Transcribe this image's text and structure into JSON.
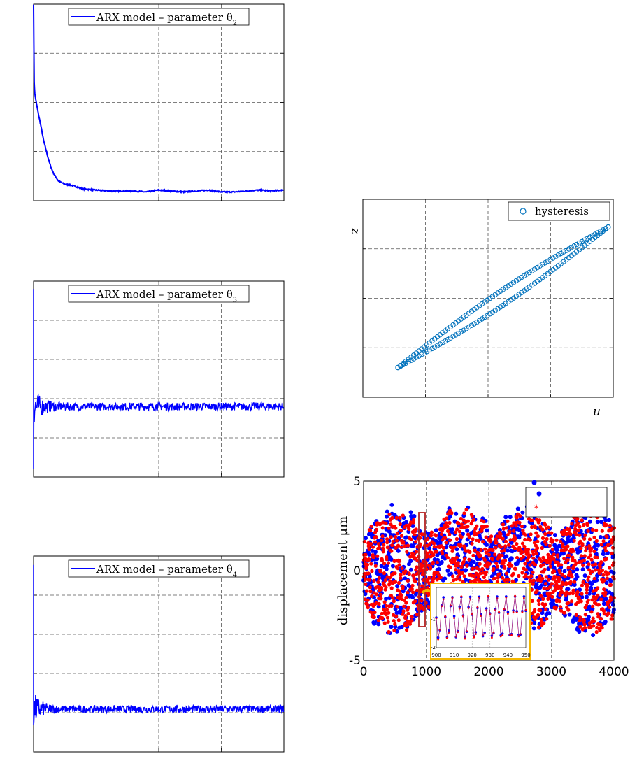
{
  "chart_data": [
    {
      "type": "line",
      "legend": {
        "entry": "ARX model – parameter θ",
        "subscript": "2",
        "color": "#0000ff",
        "placement": "top-center"
      },
      "grid": true,
      "x": [
        0,
        0.5,
        1,
        2,
        4,
        6,
        8,
        10,
        12,
        14,
        16,
        18,
        20,
        25,
        30,
        40,
        50,
        60,
        70,
        80,
        90,
        100,
        110,
        120,
        130,
        140,
        150,
        160,
        170,
        180,
        190,
        200
      ],
      "values": [
        1.0,
        0.6,
        0.54,
        0.5,
        0.43,
        0.37,
        0.3,
        0.25,
        0.2,
        0.16,
        0.13,
        0.11,
        0.09,
        0.075,
        0.07,
        0.05,
        0.045,
        0.04,
        0.04,
        0.04,
        0.035,
        0.045,
        0.04,
        0.035,
        0.04,
        0.045,
        0.035,
        0.035,
        0.04,
        0.045,
        0.04,
        0.045
      ],
      "xlim": [
        0,
        200
      ],
      "ylim": [
        -0.01,
        1.0
      ]
    },
    {
      "type": "line",
      "legend": {
        "entry": "ARX model – parameter θ",
        "subscript": "3",
        "color": "#0000ff",
        "placement": "top-center"
      },
      "grid": true,
      "spike": {
        "max": 0.95,
        "min": -0.2
      },
      "baseline": 0.2,
      "noise": 0.025,
      "xlim": [
        0,
        200
      ],
      "ylim": [
        -0.25,
        1.0
      ]
    },
    {
      "type": "line",
      "legend": {
        "entry": "ARX model – parameter θ",
        "subscript": "4",
        "color": "#0000ff",
        "placement": "top-center"
      },
      "grid": true,
      "spike": {
        "max": 0.95,
        "min": 0.05
      },
      "baseline": 0.14,
      "noise": 0.02,
      "xlim": [
        0,
        200
      ],
      "ylim": [
        -0.1,
        1.0
      ]
    },
    {
      "type": "scatter",
      "legend": {
        "entry": "hysteresis",
        "color": "#0072bd",
        "placement": "top-right"
      },
      "grid": true,
      "xlabel": "u",
      "ylabel": "z",
      "loop": {
        "x_min": 0.14,
        "x_max": 0.98,
        "y_min": 0.15,
        "y_max": 0.86,
        "half_width": 0.04
      },
      "xlim": [
        0,
        1
      ],
      "ylim": [
        0,
        1
      ]
    },
    {
      "type": "scatter",
      "ylabel": "displacement μm",
      "xlim": [
        0,
        4000
      ],
      "ylim": [
        -5,
        5
      ],
      "xticks": [
        "0",
        "1000",
        "2000",
        "3000",
        "4000"
      ],
      "yticks": [
        "5",
        "0",
        "-5"
      ],
      "series": [
        {
          "color": "#0000ff",
          "marker": "dot"
        },
        {
          "color": "#ff0000",
          "marker": "star"
        }
      ],
      "inset": {
        "xlim": [
          900,
          950
        ],
        "xticks": [
          "900",
          "910",
          "920",
          "930",
          "940",
          "950"
        ],
        "yticks": [
          "-1",
          "-2"
        ]
      }
    }
  ]
}
